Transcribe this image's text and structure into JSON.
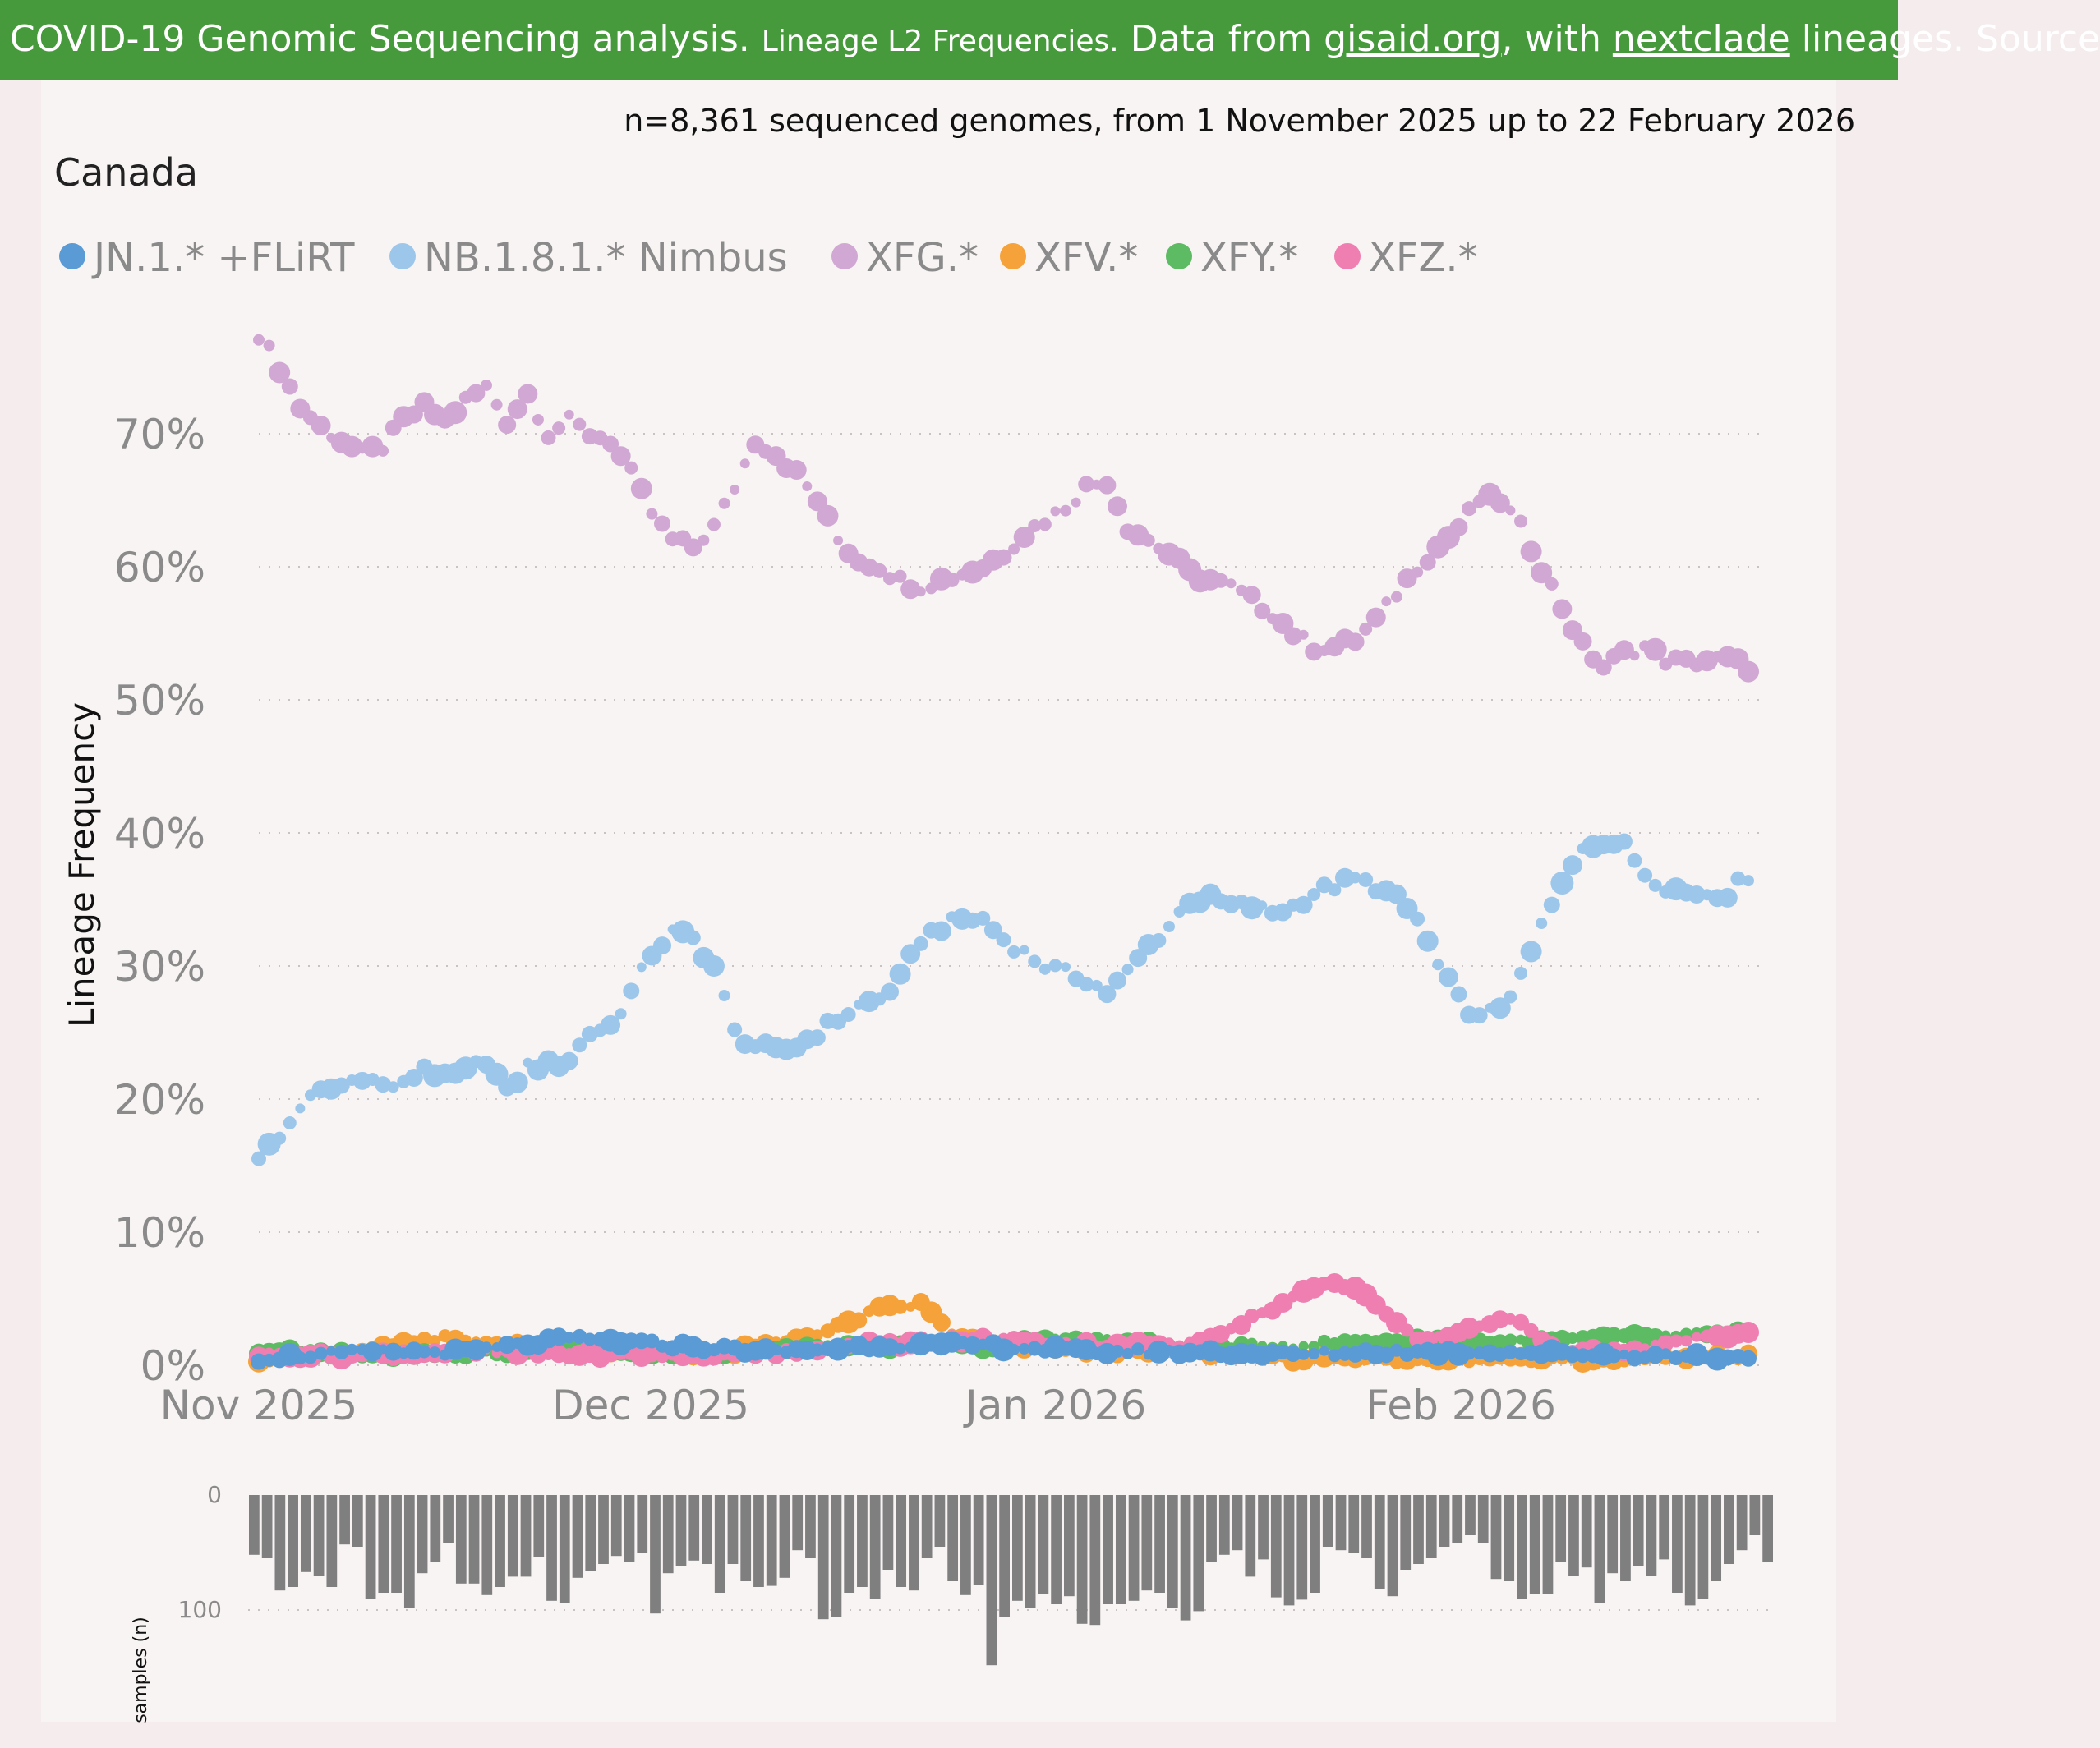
{
  "header": {
    "main": "COVID-19 Genomic Sequencing analysis.",
    "small": "Lineage L2 Frequencies.",
    "data_prefix": "Data from",
    "link1": "gisaid.org",
    "with": ", with",
    "link2": "nextclade",
    "suffix": "lineages. Source"
  },
  "summary": "n=8,361 sequenced genomes, from 1 November 2025 up to 22 February 2026",
  "region": "Canada",
  "chart_data": {
    "type": "scatter",
    "title": "Canada",
    "ylabel": "Lineage Frequency",
    "ylim": [
      0,
      78
    ],
    "y_ticks": [
      "0%",
      "10%",
      "20%",
      "30%",
      "40%",
      "50%",
      "60%",
      "70%"
    ],
    "y_tick_values": [
      0,
      10,
      20,
      30,
      40,
      50,
      60,
      70
    ],
    "x_tick_labels": [
      "Nov 2025",
      "Dec 2025",
      "Jan 2026",
      "Feb 2026"
    ],
    "x_tick_days": [
      0,
      30,
      61,
      92
    ],
    "x_days": 114,
    "legend": [
      {
        "name": "JN.1.* +FLiRT",
        "color": "#5b9bd5"
      },
      {
        "name": "NB.1.8.1.* Nimbus",
        "color": "#9dc7ea"
      },
      {
        "name": "XFG.*",
        "color": "#d1a8d3"
      },
      {
        "name": "XFV.*",
        "color": "#f5a23a"
      },
      {
        "name": "XFY.*",
        "color": "#5dbb63"
      },
      {
        "name": "XFZ.*",
        "color": "#ef7fb1"
      }
    ],
    "series": [
      {
        "name": "XFG.*",
        "color": "#d1a8d3",
        "anchors": [
          [
            0,
            77.5
          ],
          [
            2,
            75
          ],
          [
            4,
            72
          ],
          [
            6,
            70.5
          ],
          [
            8,
            69.5
          ],
          [
            10,
            68.5
          ],
          [
            12,
            69
          ],
          [
            14,
            71
          ],
          [
            16,
            72
          ],
          [
            18,
            71
          ],
          [
            20,
            72.5
          ],
          [
            22,
            73.5
          ],
          [
            24,
            71
          ],
          [
            26,
            73
          ],
          [
            28,
            70
          ],
          [
            30,
            71
          ],
          [
            32,
            70
          ],
          [
            34,
            69.5
          ],
          [
            36,
            67
          ],
          [
            38,
            64
          ],
          [
            40,
            62
          ],
          [
            42,
            61.5
          ],
          [
            44,
            63
          ],
          [
            46,
            66
          ],
          [
            48,
            69.5
          ],
          [
            50,
            68.5
          ],
          [
            52,
            67
          ],
          [
            54,
            65
          ],
          [
            56,
            62
          ],
          [
            58,
            60.5
          ],
          [
            60,
            60
          ],
          [
            62,
            59
          ],
          [
            64,
            58.5
          ],
          [
            66,
            59
          ],
          [
            68,
            59.5
          ],
          [
            70,
            60
          ],
          [
            72,
            61
          ],
          [
            74,
            62.5
          ],
          [
            76,
            63.5
          ],
          [
            78,
            64.5
          ],
          [
            80,
            66
          ],
          [
            82,
            66.5
          ],
          [
            84,
            63
          ],
          [
            86,
            62
          ],
          [
            88,
            61
          ],
          [
            90,
            59.5
          ],
          [
            92,
            59
          ],
          [
            94,
            58.5
          ],
          [
            96,
            57.5
          ],
          [
            98,
            56.5
          ],
          [
            100,
            55
          ],
          [
            102,
            54
          ],
          [
            104,
            54
          ],
          [
            106,
            54.5
          ],
          [
            108,
            56
          ],
          [
            110,
            58
          ],
          [
            112,
            60
          ],
          [
            114,
            61.5
          ],
          [
            116,
            63
          ],
          [
            118,
            65
          ],
          [
            120,
            65
          ],
          [
            122,
            63
          ],
          [
            124,
            60
          ],
          [
            126,
            57
          ],
          [
            128,
            54
          ],
          [
            130,
            52.5
          ],
          [
            132,
            53.5
          ],
          [
            134,
            54
          ],
          [
            136,
            53
          ],
          [
            138,
            52.8
          ],
          [
            140,
            53
          ],
          [
            142,
            53
          ],
          [
            144,
            52.5
          ]
        ]
      },
      {
        "name": "NB.1.8.1.* Nimbus",
        "color": "#9dc7ea",
        "anchors": [
          [
            0,
            15.8
          ],
          [
            2,
            17
          ],
          [
            4,
            19.5
          ],
          [
            6,
            20.5
          ],
          [
            8,
            21
          ],
          [
            10,
            21.8
          ],
          [
            12,
            21
          ],
          [
            14,
            21
          ],
          [
            16,
            22.5
          ],
          [
            18,
            21.5
          ],
          [
            20,
            22
          ],
          [
            22,
            23
          ],
          [
            24,
            20.5
          ],
          [
            26,
            22.5
          ],
          [
            28,
            22.5
          ],
          [
            30,
            23
          ],
          [
            32,
            25
          ],
          [
            34,
            25.5
          ],
          [
            36,
            28
          ],
          [
            38,
            31
          ],
          [
            40,
            32.5
          ],
          [
            42,
            32
          ],
          [
            44,
            30
          ],
          [
            46,
            25
          ],
          [
            48,
            24
          ],
          [
            50,
            23.5
          ],
          [
            52,
            24
          ],
          [
            54,
            25
          ],
          [
            56,
            26
          ],
          [
            58,
            27
          ],
          [
            60,
            27.5
          ],
          [
            62,
            29
          ],
          [
            64,
            32
          ],
          [
            66,
            33
          ],
          [
            68,
            33.5
          ],
          [
            70,
            33.5
          ],
          [
            72,
            32
          ],
          [
            74,
            31
          ],
          [
            76,
            30
          ],
          [
            78,
            29.5
          ],
          [
            80,
            29
          ],
          [
            82,
            28
          ],
          [
            84,
            29.5
          ],
          [
            86,
            31.5
          ],
          [
            88,
            33
          ],
          [
            90,
            35
          ],
          [
            92,
            35
          ],
          [
            94,
            34.5
          ],
          [
            96,
            34.5
          ],
          [
            98,
            34
          ],
          [
            100,
            34.5
          ],
          [
            102,
            35.5
          ],
          [
            104,
            36
          ],
          [
            106,
            36.5
          ],
          [
            108,
            36
          ],
          [
            110,
            35
          ],
          [
            112,
            33.5
          ],
          [
            114,
            30
          ],
          [
            116,
            27.5
          ],
          [
            118,
            26
          ],
          [
            120,
            27
          ],
          [
            122,
            29
          ],
          [
            124,
            33
          ],
          [
            126,
            36
          ],
          [
            128,
            39
          ],
          [
            130,
            39.5
          ],
          [
            132,
            39
          ],
          [
            134,
            37
          ],
          [
            136,
            36
          ],
          [
            138,
            35.5
          ],
          [
            140,
            35.5
          ],
          [
            142,
            35.5
          ],
          [
            144,
            36.8
          ]
        ]
      },
      {
        "name": "XFV.*",
        "color": "#f5a23a",
        "anchors": [
          [
            0,
            0.5
          ],
          [
            10,
            1
          ],
          [
            18,
            2
          ],
          [
            25,
            1.5
          ],
          [
            35,
            1.2
          ],
          [
            45,
            0.8
          ],
          [
            55,
            2.5
          ],
          [
            60,
            4.2
          ],
          [
            64,
            4.6
          ],
          [
            68,
            1.8
          ],
          [
            80,
            1
          ],
          [
            90,
            1
          ],
          [
            100,
            0.5
          ],
          [
            110,
            0.5
          ],
          [
            120,
            0.5
          ],
          [
            130,
            0.5
          ],
          [
            144,
            0.8
          ]
        ]
      },
      {
        "name": "XFY.*",
        "color": "#5dbb63",
        "anchors": [
          [
            0,
            1
          ],
          [
            10,
            0.8
          ],
          [
            20,
            1
          ],
          [
            30,
            1
          ],
          [
            40,
            0.8
          ],
          [
            50,
            1.2
          ],
          [
            60,
            1.5
          ],
          [
            70,
            1.5
          ],
          [
            80,
            2
          ],
          [
            90,
            1.2
          ],
          [
            100,
            1.5
          ],
          [
            110,
            1.8
          ],
          [
            120,
            1.8
          ],
          [
            130,
            2
          ],
          [
            140,
            2.2
          ],
          [
            144,
            2.5
          ]
        ]
      },
      {
        "name": "XFZ.*",
        "color": "#ef7fb1",
        "anchors": [
          [
            0,
            0.8
          ],
          [
            10,
            0.8
          ],
          [
            20,
            1
          ],
          [
            30,
            0.8
          ],
          [
            40,
            0.8
          ],
          [
            50,
            1
          ],
          [
            60,
            1.5
          ],
          [
            70,
            2
          ],
          [
            80,
            1.5
          ],
          [
            90,
            1.5
          ],
          [
            100,
            5
          ],
          [
            102,
            6
          ],
          [
            106,
            6
          ],
          [
            110,
            3
          ],
          [
            112,
            1.8
          ],
          [
            114,
            2
          ],
          [
            120,
            3.5
          ],
          [
            122,
            3
          ],
          [
            126,
            1.2
          ],
          [
            130,
            1
          ],
          [
            134,
            1.2
          ],
          [
            140,
            2.2
          ],
          [
            144,
            2.5
          ]
        ]
      },
      {
        "name": "JN.1.* +FLiRT",
        "color": "#5b9bd5",
        "anchors": [
          [
            0,
            0.5
          ],
          [
            10,
            1
          ],
          [
            20,
            1
          ],
          [
            30,
            2
          ],
          [
            40,
            1.5
          ],
          [
            50,
            1
          ],
          [
            60,
            1.5
          ],
          [
            70,
            1.5
          ],
          [
            80,
            1
          ],
          [
            90,
            1
          ],
          [
            100,
            0.8
          ],
          [
            110,
            1
          ],
          [
            120,
            1
          ],
          [
            130,
            0.8
          ],
          [
            144,
            0.6
          ]
        ]
      }
    ],
    "samples": {
      "ylabel": "samples (n)",
      "ticks": [
        "0",
        "100"
      ],
      "tick_values": [
        0,
        100
      ],
      "values": [
        52,
        55,
        83,
        80,
        67,
        70,
        80,
        43,
        45,
        90,
        85,
        85,
        98,
        68,
        58,
        42,
        77,
        77,
        87,
        80,
        71,
        71,
        54,
        92,
        94,
        72,
        66,
        60,
        53,
        58,
        50,
        103,
        68,
        62,
        57,
        60,
        85,
        60,
        75,
        80,
        79,
        72,
        48,
        55,
        108,
        106,
        85,
        80,
        90,
        65,
        80,
        83,
        55,
        45,
        75,
        87,
        78,
        148,
        106,
        92,
        98,
        86,
        95,
        88,
        112,
        113,
        95,
        95,
        92,
        83,
        85,
        98,
        109,
        101,
        58,
        52,
        48,
        71,
        56,
        89,
        96,
        91,
        85,
        45,
        48,
        50,
        55,
        82,
        88,
        65,
        60,
        55,
        45,
        42,
        35,
        42,
        73,
        75,
        90,
        86,
        86,
        58,
        70,
        63,
        94,
        68,
        75,
        62,
        70,
        56,
        85,
        96,
        90,
        75,
        60,
        48,
        35,
        58
      ]
    }
  }
}
